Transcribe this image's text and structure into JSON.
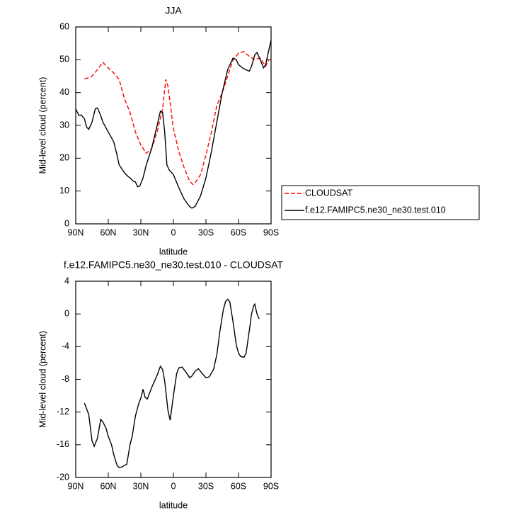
{
  "chart_data": [
    {
      "type": "line",
      "title": "JJA",
      "xlabel": "latitude",
      "ylabel": "Mid-level cloud (percent)",
      "xlim": [
        90,
        -90
      ],
      "xticks": [
        {
          "value": 90,
          "label": "90N"
        },
        {
          "value": 60,
          "label": "60N"
        },
        {
          "value": 30,
          "label": "30N"
        },
        0,
        {
          "value": -30,
          "label": "30S"
        },
        {
          "value": -60,
          "label": "60S"
        },
        {
          "value": -90,
          "label": "90S"
        }
      ],
      "ylim": [
        0,
        60
      ],
      "yticks": [
        0,
        10,
        20,
        30,
        40,
        50,
        60
      ],
      "legend": "outside-right",
      "series": [
        {
          "name": "CLOUDSAT",
          "color": "#ff0000",
          "dashed": true,
          "x": [
            82,
            80,
            75,
            70,
            65,
            60,
            55,
            50,
            45,
            40,
            35,
            30,
            25,
            20,
            15,
            10,
            7,
            5,
            0,
            -5,
            -10,
            -15,
            -18,
            -20,
            -25,
            -30,
            -35,
            -40,
            -45,
            -50,
            -55,
            -60,
            -65,
            -70,
            -75,
            -80,
            -85,
            -88
          ],
          "values": [
            44.2,
            44.3,
            45,
            47,
            49.2,
            47.5,
            46,
            44,
            38,
            34,
            28,
            24,
            21.5,
            23,
            28,
            35,
            44,
            42,
            29,
            22,
            17,
            13,
            12,
            12.5,
            15,
            21,
            28,
            36,
            40,
            45,
            50,
            52,
            52.5,
            51,
            50,
            50.5,
            48,
            50
          ]
        },
        {
          "name": "f.e12.FAMIPC5.ne30_ne30.test.010",
          "color": "#000000",
          "dashed": false,
          "x": [
            90,
            87,
            85,
            82,
            80,
            78,
            75,
            72,
            70,
            67,
            65,
            60,
            55,
            52,
            50,
            47,
            45,
            42,
            40,
            37,
            35,
            33,
            31,
            28,
            25,
            20,
            15,
            12,
            10,
            8,
            6,
            4,
            0,
            -5,
            -10,
            -15,
            -17,
            -20,
            -25,
            -30,
            -35,
            -40,
            -45,
            -50,
            -55,
            -58,
            -60,
            -65,
            -70,
            -72,
            -75,
            -77,
            -80,
            -83,
            -85,
            -88,
            -90
          ],
          "values": [
            35,
            33,
            33.2,
            32,
            29.5,
            28.8,
            31,
            35,
            35.3,
            33,
            31,
            28,
            25,
            21,
            18,
            16.5,
            15.5,
            14.5,
            14,
            13,
            12.8,
            11.3,
            11.5,
            14,
            18,
            23,
            30,
            34.3,
            34,
            28,
            18,
            16.5,
            15,
            11,
            7.5,
            5.2,
            4.8,
            5.3,
            8.5,
            14,
            22,
            31,
            40,
            47,
            50.5,
            50,
            48.5,
            47.2,
            46.5,
            48,
            51.5,
            52.2,
            50,
            47.5,
            48.5,
            53,
            56
          ]
        }
      ]
    },
    {
      "type": "line",
      "title": "f.e12.FAMIPC5.ne30_ne30.test.010 - CLOUDSAT",
      "xlabel": "latitude",
      "ylabel": "Mid-level cloud (percent)",
      "xlim": [
        90,
        -90
      ],
      "xticks": [
        {
          "value": 90,
          "label": "90N"
        },
        {
          "value": 60,
          "label": "60N"
        },
        {
          "value": 30,
          "label": "30N"
        },
        0,
        {
          "value": -30,
          "label": "30S"
        },
        {
          "value": -60,
          "label": "60S"
        },
        {
          "value": -90,
          "label": "90S"
        }
      ],
      "ylim": [
        -20,
        4
      ],
      "yticks": [
        -20,
        -16,
        -12,
        -8,
        -4,
        0,
        4
      ],
      "series": [
        {
          "color": "#000000",
          "dashed": false,
          "x": [
            82,
            78,
            75,
            73,
            70,
            67,
            65,
            62,
            60,
            57,
            55,
            52,
            50,
            47,
            45,
            43,
            40,
            38,
            35,
            32,
            30,
            28,
            26,
            24,
            20,
            15,
            12,
            10,
            8,
            5,
            3,
            0,
            -3,
            -5,
            -8,
            -12,
            -15,
            -17,
            -20,
            -23,
            -26,
            -30,
            -33,
            -37,
            -40,
            -43,
            -46,
            -48,
            -50,
            -52,
            -55,
            -58,
            -60,
            -62,
            -65,
            -67,
            -70,
            -72,
            -74,
            -75,
            -77,
            -79
          ],
          "values": [
            -10.9,
            -12.3,
            -15.5,
            -16.2,
            -15.2,
            -12.9,
            -13.2,
            -14,
            -15,
            -16,
            -17.2,
            -18.5,
            -18.8,
            -18.7,
            -18.5,
            -18.4,
            -16,
            -15,
            -12.5,
            -11,
            -10.3,
            -9.2,
            -10.2,
            -10.4,
            -9,
            -7.5,
            -6.4,
            -6.8,
            -8.2,
            -11.8,
            -13,
            -10,
            -7.3,
            -6.6,
            -6.5,
            -7.2,
            -7.8,
            -7.6,
            -7,
            -6.7,
            -7.2,
            -7.8,
            -7.7,
            -6.8,
            -5,
            -2,
            0.5,
            1.5,
            1.8,
            1.5,
            -1,
            -3.8,
            -4.8,
            -5.2,
            -5.3,
            -4.8,
            -2,
            0,
            1,
            1.2,
            0,
            -0.6
          ]
        }
      ]
    }
  ]
}
